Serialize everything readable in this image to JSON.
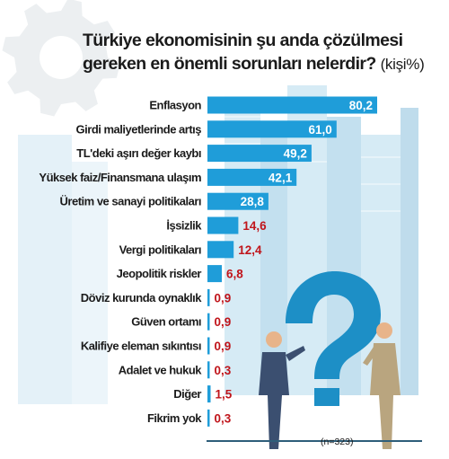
{
  "title": {
    "line1": "Türkiye ekonomisinin şu anda çözülmesi",
    "line2": "gereken en önemli sorunları nelerdir?",
    "unit": "(kişi%)"
  },
  "note": "(n=323)",
  "colors": {
    "bar": "#1f9dd9",
    "value_inside": "#ffffff",
    "value_outside": "#c0151b",
    "label": "#1b1b1b",
    "gear": "#eceff1",
    "buildings": "#cfe7f3",
    "question_mark": "#1d8fc6"
  },
  "chart_data": {
    "type": "bar",
    "orientation": "horizontal",
    "title": "Türkiye ekonomisinin şu anda çözülmesi gereken en önemli sorunları nelerdir? (kişi%)",
    "categories": [
      "Enflasyon",
      "Girdi maliyetlerinde artış",
      "TL'deki aşırı değer kaybı",
      "Yüksek faiz/Finansmana ulaşım",
      "Üretim ve sanayi politikaları",
      "İşsizlik",
      "Vergi politikaları",
      "Jeopolitik riskler",
      "Döviz kurunda oynaklık",
      "Güven ortamı",
      "Kalifiye eleman sıkıntısı",
      "Adalet ve hukuk",
      "Diğer",
      "Fikrim yok"
    ],
    "values": [
      80.2,
      61.0,
      49.2,
      42.1,
      28.8,
      14.6,
      12.4,
      6.8,
      0.9,
      0.9,
      0.9,
      0.3,
      1.5,
      0.3
    ],
    "value_labels": [
      "80,2",
      "61,0",
      "49,2",
      "42,1",
      "28,8",
      "14,6",
      "12,4",
      "6,8",
      "0,9",
      "0,9",
      "0,9",
      "0,3",
      "1,5",
      "0,3"
    ],
    "xlim": [
      0,
      80.2
    ],
    "xlabel": "",
    "ylabel": "",
    "grid": false,
    "legend": "none"
  }
}
